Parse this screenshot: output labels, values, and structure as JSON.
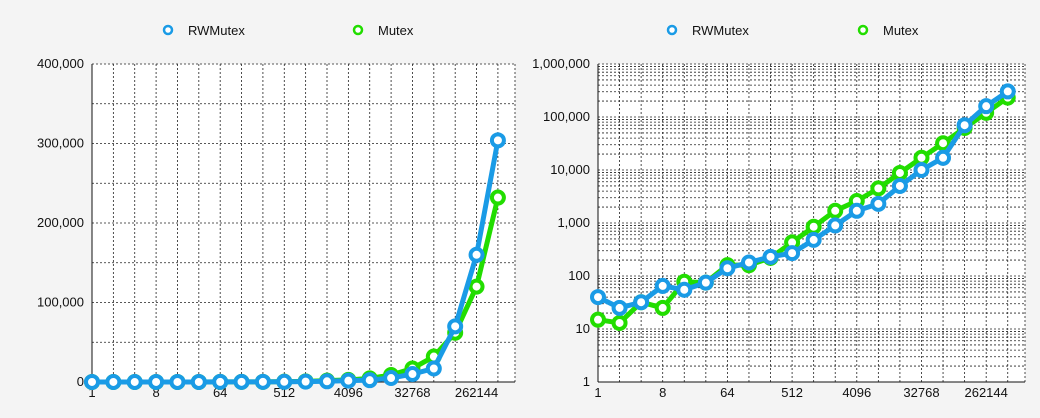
{
  "chart_data": [
    {
      "type": "line",
      "yscale": "linear",
      "ylim": [
        0,
        400000
      ],
      "xlabel": "",
      "ylabel": "",
      "grid": true,
      "legend": "top",
      "x_tick_labels": [
        "1",
        "8",
        "64",
        "512",
        "4096",
        "32768",
        "262144"
      ],
      "y_tick_labels": [
        "0",
        "100,000",
        "200,000",
        "300,000",
        "400,000"
      ],
      "x": [
        1,
        2,
        4,
        8,
        16,
        32,
        64,
        128,
        256,
        512,
        1024,
        2048,
        4096,
        8192,
        16384,
        32768,
        65536,
        131072,
        262144,
        524288
      ],
      "series": [
        {
          "name": "RWMutex",
          "color": "#1a9be6",
          "values": [
            40,
            25,
            32,
            65,
            55,
            75,
            140,
            180,
            230,
            270,
            480,
            900,
            1700,
            2300,
            5000,
            10000,
            17000,
            70000,
            160000,
            304000
          ]
        },
        {
          "name": "Mutex",
          "color": "#22dd00",
          "values": [
            15,
            13,
            32,
            25,
            78,
            75,
            160,
            160,
            220,
            430,
            850,
            1700,
            2600,
            4500,
            8800,
            17000,
            32000,
            62000,
            120000,
            232000
          ]
        }
      ]
    },
    {
      "type": "line",
      "yscale": "log",
      "ylim": [
        1,
        1000000
      ],
      "xlabel": "",
      "ylabel": "",
      "grid": true,
      "legend": "top",
      "x_tick_labels": [
        "1",
        "8",
        "64",
        "512",
        "4096",
        "32768",
        "262144"
      ],
      "y_tick_labels": [
        "1",
        "10",
        "100",
        "1,000",
        "10,000",
        "100,000",
        "1,000,000"
      ],
      "x": [
        1,
        2,
        4,
        8,
        16,
        32,
        64,
        128,
        256,
        512,
        1024,
        2048,
        4096,
        8192,
        16384,
        32768,
        65536,
        131072,
        262144,
        524288
      ],
      "series": [
        {
          "name": "RWMutex",
          "color": "#1a9be6",
          "values": [
            40,
            25,
            32,
            65,
            55,
            75,
            140,
            180,
            230,
            270,
            480,
            900,
            1700,
            2300,
            5000,
            10000,
            17000,
            70000,
            160000,
            304000
          ]
        },
        {
          "name": "Mutex",
          "color": "#22dd00",
          "values": [
            15,
            13,
            32,
            25,
            78,
            75,
            160,
            160,
            220,
            430,
            850,
            1700,
            2600,
            4500,
            8800,
            17000,
            32000,
            62000,
            120000,
            232000
          ]
        }
      ]
    }
  ]
}
